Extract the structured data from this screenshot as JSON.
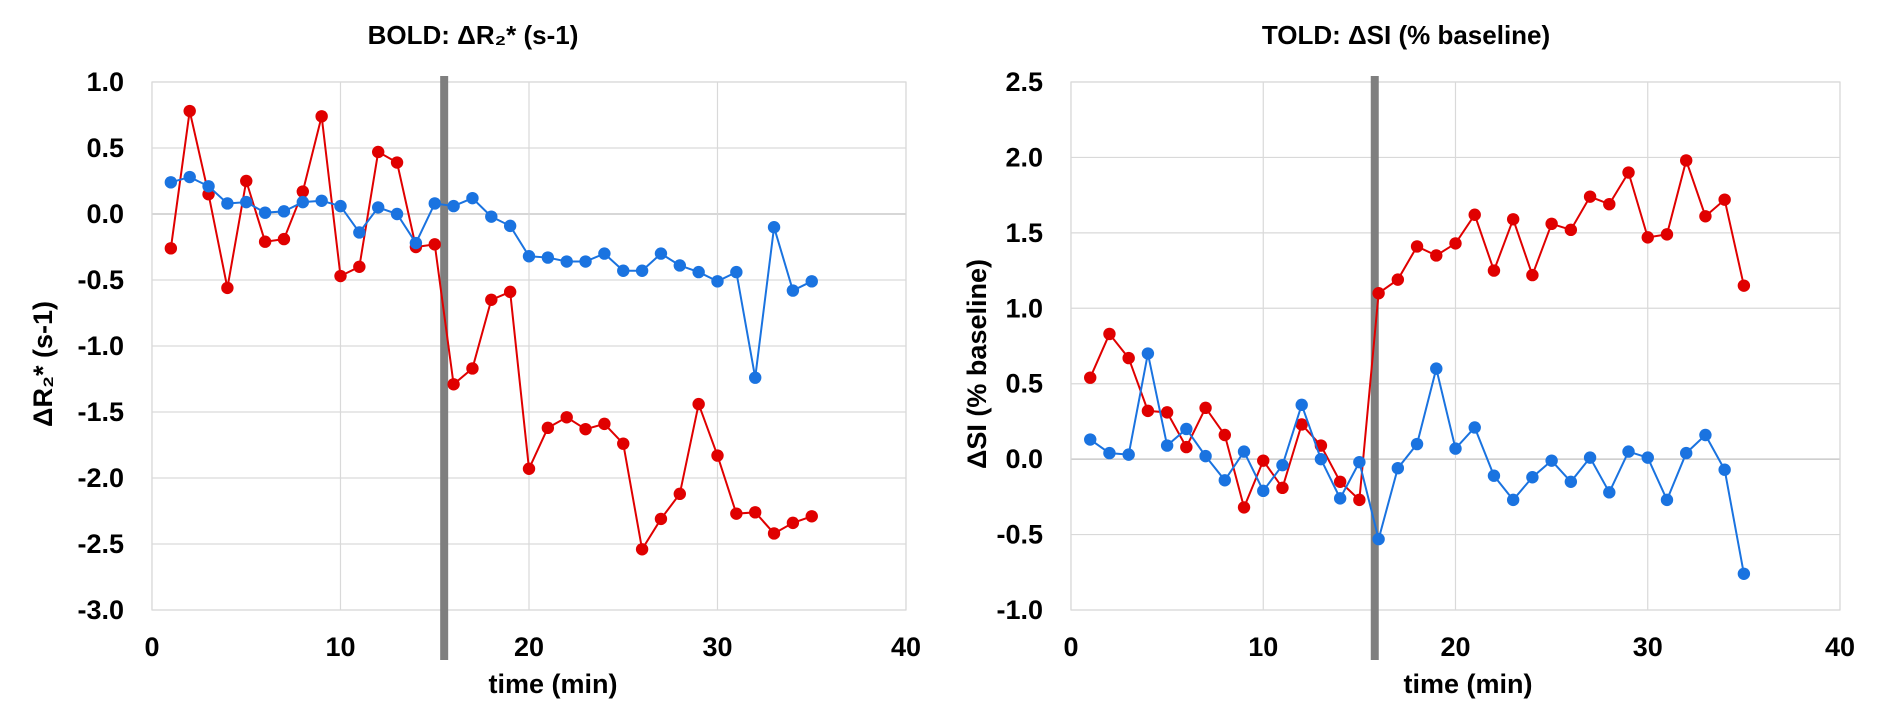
{
  "chart_data": [
    {
      "type": "line",
      "title": "BOLD: ΔR₂* (s-1)",
      "xlabel": "time (min)",
      "ylabel": "ΔR₂* (s-1)",
      "xlim": [
        0,
        40
      ],
      "ylim": [
        -3.0,
        1.0
      ],
      "x_ticks": [
        "0",
        "10",
        "20",
        "30",
        "40"
      ],
      "y_ticks": [
        "1.0",
        "0.5",
        "0.0",
        "-0.5",
        "-1.0",
        "-1.5",
        "-2.0",
        "-2.5",
        "-3.0"
      ],
      "grid": true,
      "marker_line_x": 15.5,
      "x": [
        1,
        2,
        3,
        4,
        5,
        6,
        7,
        8,
        9,
        10,
        11,
        12,
        13,
        14,
        15,
        16,
        17,
        18,
        19,
        20,
        21,
        22,
        23,
        24,
        25,
        26,
        27,
        28,
        29,
        30,
        31,
        32,
        33,
        34,
        35
      ],
      "series": [
        {
          "color": "#e00000",
          "values": [
            -0.26,
            0.78,
            0.15,
            -0.56,
            0.25,
            -0.21,
            -0.19,
            0.17,
            0.74,
            -0.47,
            -0.4,
            0.47,
            0.39,
            -0.25,
            -0.23,
            -1.29,
            -1.17,
            -0.65,
            -0.59,
            -1.93,
            -1.62,
            -1.54,
            -1.63,
            -1.59,
            -1.74,
            -2.54,
            -2.31,
            -2.12,
            -1.44,
            -1.83,
            -2.27,
            -2.26,
            -2.42,
            -2.34,
            -2.29
          ]
        },
        {
          "color": "#1a73e0",
          "values": [
            0.24,
            0.28,
            0.21,
            0.08,
            0.09,
            0.01,
            0.02,
            0.09,
            0.1,
            0.06,
            -0.14,
            0.05,
            0.0,
            -0.22,
            0.08,
            0.06,
            0.12,
            -0.02,
            -0.09,
            -0.32,
            -0.33,
            -0.36,
            -0.36,
            -0.3,
            -0.43,
            -0.43,
            -0.3,
            -0.39,
            -0.44,
            -0.51,
            -0.44,
            -1.24,
            -0.1,
            -0.58,
            -0.51
          ]
        }
      ]
    },
    {
      "type": "line",
      "title": "TOLD: ΔSI (% baseline)",
      "xlabel": "time (min)",
      "ylabel": "ΔSI (% baseline)",
      "xlim": [
        0,
        40
      ],
      "ylim": [
        -1.0,
        2.5
      ],
      "x_ticks": [
        "0",
        "10",
        "20",
        "30",
        "40"
      ],
      "y_ticks": [
        "2.5",
        "2.0",
        "1.5",
        "1.0",
        "0.5",
        "0.0",
        "-0.5",
        "-1.0"
      ],
      "grid": true,
      "marker_line_x": 15.8,
      "x": [
        1,
        2,
        3,
        4,
        5,
        6,
        7,
        8,
        9,
        10,
        11,
        12,
        13,
        14,
        15,
        16,
        17,
        18,
        19,
        20,
        21,
        22,
        23,
        24,
        25,
        26,
        27,
        28,
        29,
        30,
        31,
        32,
        33,
        34,
        35
      ],
      "series": [
        {
          "color": "#e00000",
          "values": [
            0.54,
            0.83,
            0.67,
            0.32,
            0.31,
            0.08,
            0.34,
            0.16,
            -0.32,
            -0.01,
            -0.19,
            0.23,
            0.09,
            -0.15,
            -0.27,
            1.1,
            1.19,
            1.41,
            1.35,
            1.43,
            1.62,
            1.25,
            1.59,
            1.22,
            1.56,
            1.52,
            1.74,
            1.69,
            1.9,
            1.47,
            1.49,
            1.98,
            1.61,
            1.72,
            1.15
          ]
        },
        {
          "color": "#1a73e0",
          "values": [
            0.13,
            0.04,
            0.03,
            0.7,
            0.09,
            0.2,
            0.02,
            -0.14,
            0.05,
            -0.21,
            -0.04,
            0.36,
            0.0,
            -0.26,
            -0.02,
            -0.53,
            -0.06,
            0.1,
            0.6,
            0.07,
            0.21,
            -0.11,
            -0.27,
            -0.12,
            -0.01,
            -0.15,
            0.01,
            -0.22,
            0.05,
            0.01,
            -0.27,
            0.04,
            0.16,
            -0.07,
            -0.76
          ]
        }
      ]
    }
  ]
}
